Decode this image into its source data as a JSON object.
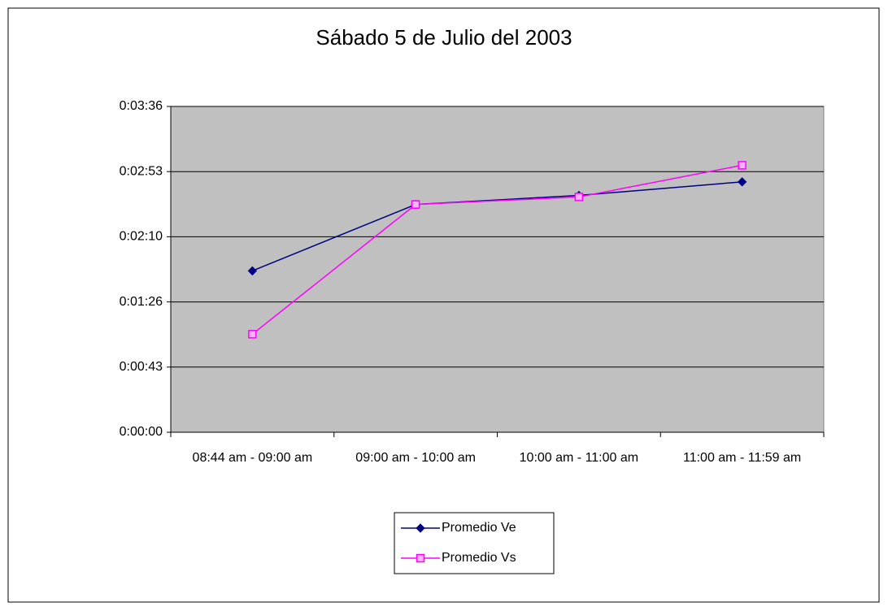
{
  "chart_data": {
    "type": "line",
    "title": "Sábado 5 de Julio del 2003",
    "categories": [
      "08:44 am - 09:00 am",
      "09:00 am - 10:00 am",
      "10:00 am - 11:00 am",
      "11:00 am - 11:59 am"
    ],
    "series": [
      {
        "name": "Promedio Ve",
        "color": "#000080",
        "marker": "diamond",
        "values": [
          107,
          151,
          157,
          166
        ]
      },
      {
        "name": "Promedio Vs",
        "color": "#ff00ff",
        "marker": "square",
        "values": [
          65,
          151,
          156,
          177
        ]
      }
    ],
    "ylim": [
      0,
      216
    ],
    "yticks": [
      {
        "value": 0,
        "label": "0:00:00"
      },
      {
        "value": 43.2,
        "label": "0:00:43"
      },
      {
        "value": 86.4,
        "label": "0:01:26"
      },
      {
        "value": 129.6,
        "label": "0:02:10"
      },
      {
        "value": 172.8,
        "label": "0:02:53"
      },
      {
        "value": 216,
        "label": "0:03:36"
      }
    ],
    "grid": true,
    "plot_background": "#c0c0c0",
    "legend": "bottom"
  }
}
